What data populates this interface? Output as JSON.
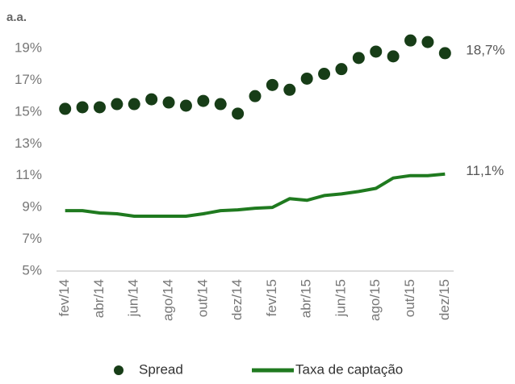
{
  "chart_data": {
    "type": "line",
    "unit_label": "a.a.",
    "categories": [
      "fev/14",
      null,
      "abr/14",
      null,
      "jun/14",
      null,
      "ago/14",
      null,
      "out/14",
      null,
      "dez/14",
      null,
      "fev/15",
      null,
      "abr/15",
      null,
      "jun/15",
      null,
      "ago/15",
      null,
      "out/15",
      null,
      "dez/15"
    ],
    "series": [
      {
        "name": "Spread",
        "color": "#173d17",
        "style": "dots",
        "values": [
          15.2,
          15.3,
          15.3,
          15.5,
          15.5,
          15.8,
          15.6,
          15.4,
          15.7,
          15.5,
          14.9,
          16.0,
          16.7,
          16.4,
          17.1,
          17.4,
          17.7,
          18.4,
          18.8,
          18.5,
          19.5,
          19.4,
          18.7
        ],
        "value_labels": [
          null,
          null,
          null,
          null,
          null,
          null,
          null,
          null,
          null,
          null,
          null,
          null,
          null,
          null,
          null,
          null,
          null,
          null,
          null,
          null,
          null,
          null,
          "18,7%"
        ]
      },
      {
        "name": "Taxa de captação",
        "color": "#1f7a1f",
        "style": "line",
        "values": [
          8.8,
          8.8,
          8.65,
          8.6,
          8.45,
          8.45,
          8.45,
          8.45,
          8.6,
          8.8,
          8.85,
          8.95,
          9.0,
          9.55,
          9.45,
          9.75,
          9.85,
          10.0,
          10.2,
          10.85,
          11.0,
          11.0,
          11.1
        ],
        "value_labels": [
          null,
          null,
          null,
          null,
          null,
          null,
          null,
          null,
          null,
          null,
          null,
          null,
          null,
          null,
          null,
          null,
          null,
          null,
          null,
          null,
          null,
          null,
          "11,1%"
        ]
      }
    ],
    "ylim": [
      5,
      20
    ],
    "yticks": [
      {
        "value": 5,
        "label": "5%"
      },
      {
        "value": 7,
        "label": "7%"
      },
      {
        "value": 9,
        "label": "9%"
      },
      {
        "value": 11,
        "label": "11%"
      },
      {
        "value": 13,
        "label": "13%"
      },
      {
        "value": 15,
        "label": "15%"
      },
      {
        "value": 17,
        "label": "17%"
      },
      {
        "value": 19,
        "label": "19%"
      }
    ],
    "legend": "bottom"
  }
}
